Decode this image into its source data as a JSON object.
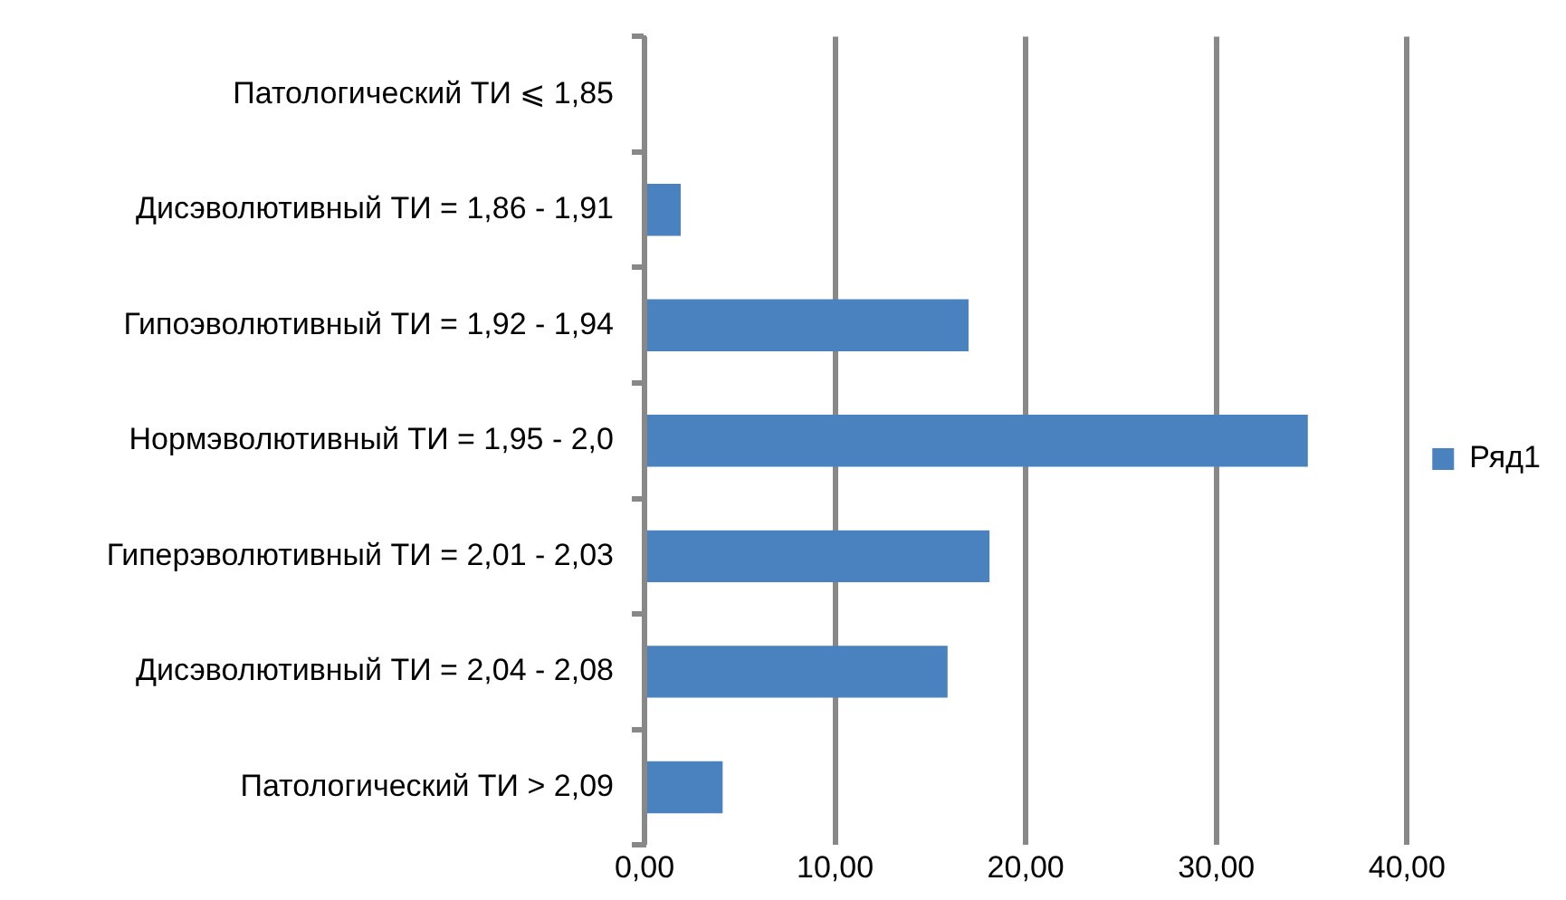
{
  "chart_data": {
    "type": "bar",
    "orientation": "horizontal",
    "categories": [
      "Патологический ТИ ⩽ 1,85",
      "Дисэволютивный ТИ = 1,86 - 1,91",
      "Гипоэволютивный ТИ = 1,92 - 1,94",
      "Нормэволютивный ТИ = 1,95 - 2,0",
      "Гиперэволютивный ТИ = 2,01 - 2,03",
      "Дисэволютивный ТИ = 2,04 - 2,08",
      "Патологический ТИ > 2,09"
    ],
    "series": [
      {
        "name": "Ряд1",
        "color": "#4a81bf",
        "values": [
          0,
          1.9,
          17.0,
          34.8,
          18.1,
          15.9,
          4.1
        ]
      }
    ],
    "xlim": [
      0,
      40
    ],
    "xticks": [
      {
        "value": 0,
        "label": "0,00"
      },
      {
        "value": 10,
        "label": "10,00"
      },
      {
        "value": 20,
        "label": "20,00"
      },
      {
        "value": 30,
        "label": "30,00"
      },
      {
        "value": 40,
        "label": "40,00"
      }
    ],
    "grid": "x",
    "legend": "right"
  }
}
